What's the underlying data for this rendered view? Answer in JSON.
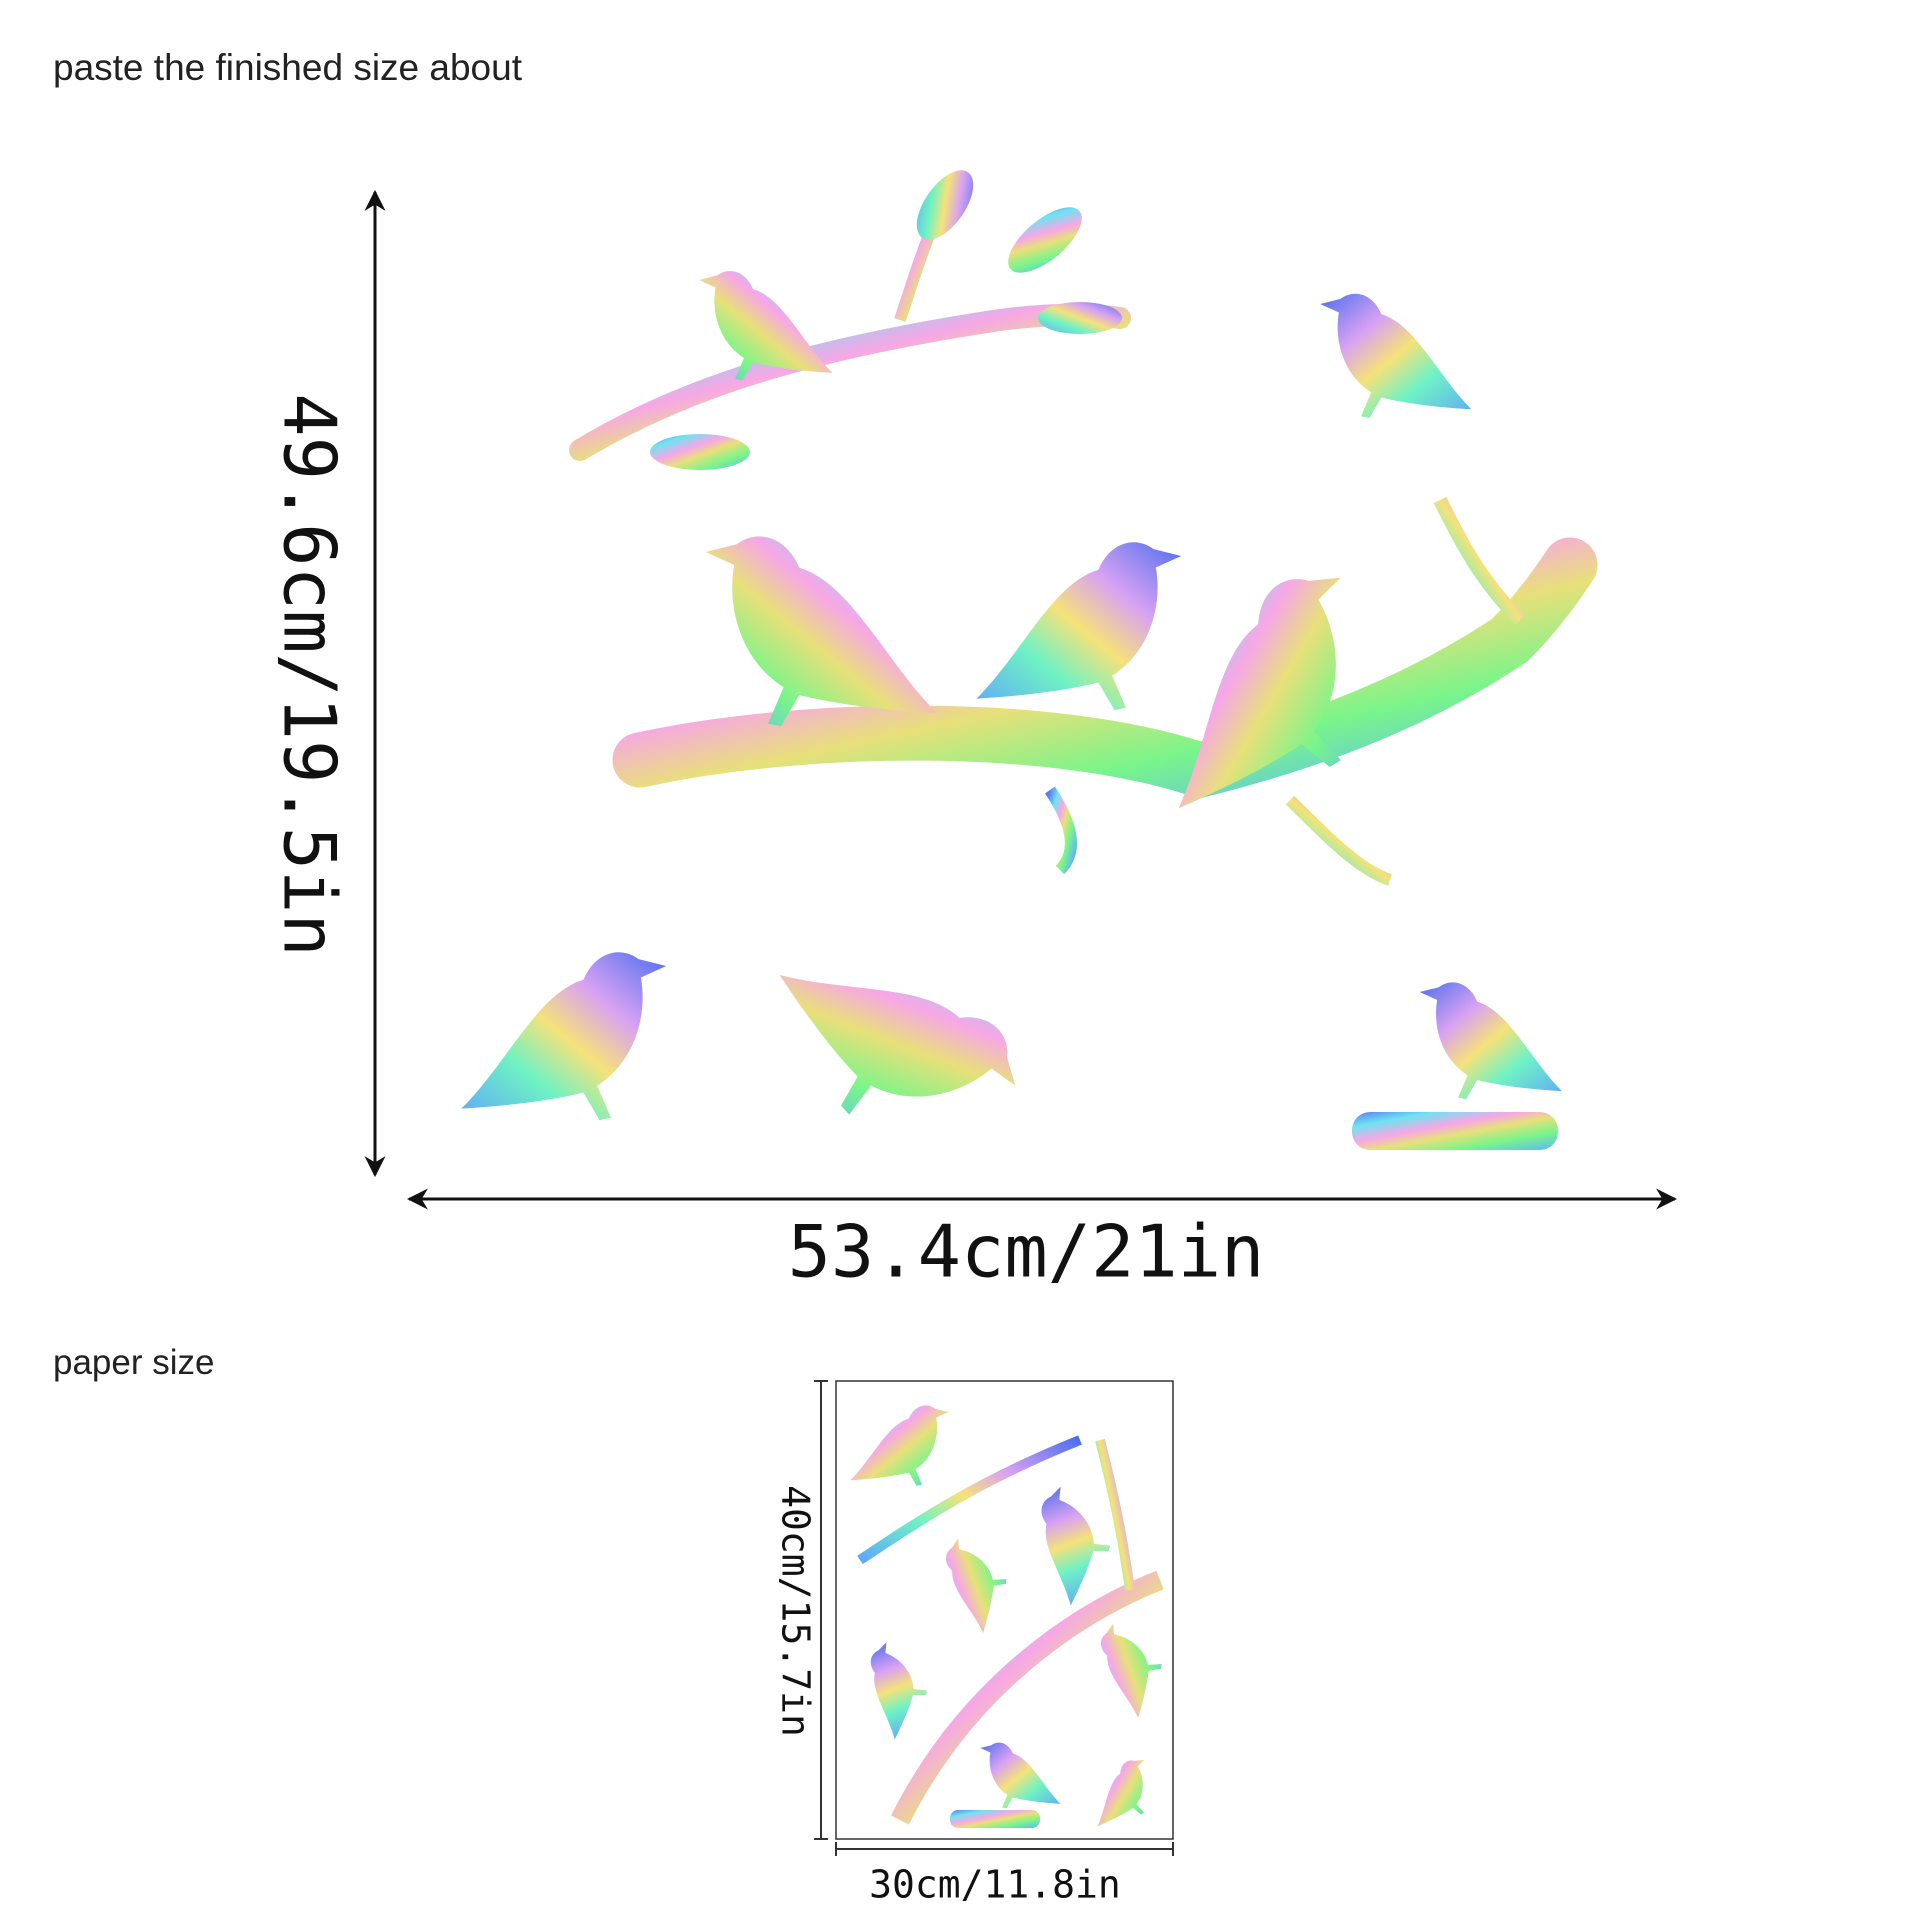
{
  "header": {
    "title": "paste the finished  size about"
  },
  "finished_size": {
    "height_label": "49.6cm/19.5in",
    "width_label": "53.4cm/21in"
  },
  "paper": {
    "title": "paper size",
    "height_label": "40cm/15.7in",
    "width_label": "30cm/11.8in"
  }
}
